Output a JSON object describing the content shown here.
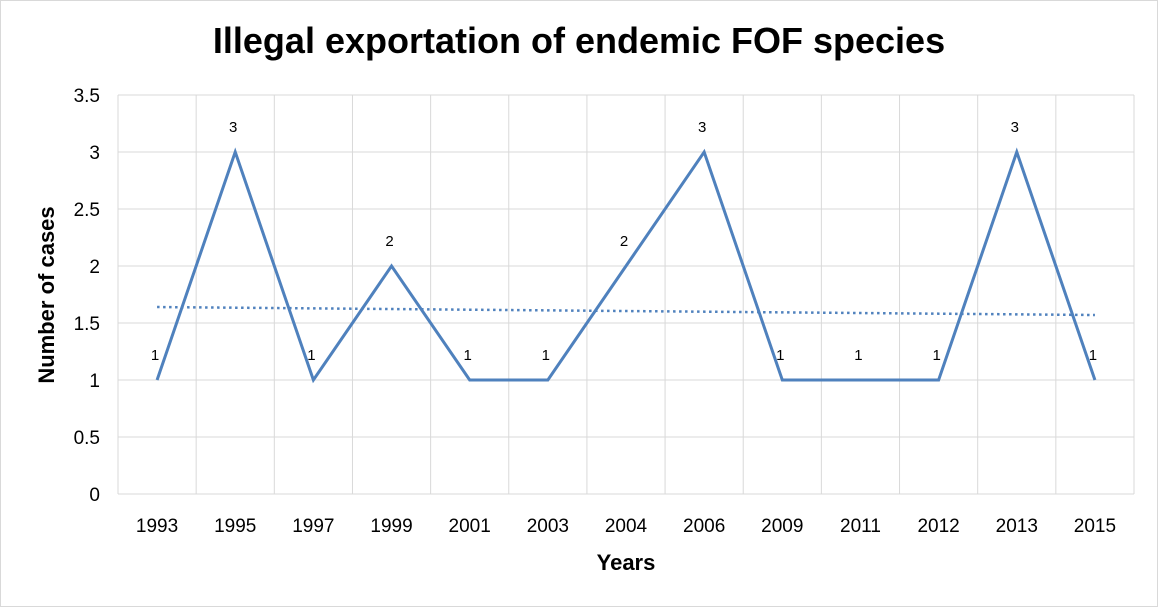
{
  "chart_data": {
    "type": "line",
    "title": "Illegal exportation of endemic FOF species",
    "xlabel": "Years",
    "ylabel": "Number of cases",
    "categories": [
      "1993",
      "1995",
      "1997",
      "1999",
      "2001",
      "2003",
      "2004",
      "2006",
      "2009",
      "2011",
      "2012",
      "2013",
      "2015"
    ],
    "series": [
      {
        "values": [
          1,
          3,
          1,
          2,
          1,
          1,
          2,
          3,
          1,
          1,
          1,
          3,
          1
        ],
        "color": "#4f81bd"
      }
    ],
    "trendline": {
      "style": "dotted",
      "color": "#4f81bd",
      "start": 1.64,
      "end": 1.57
    },
    "ylim": [
      0,
      3.5
    ],
    "yticks": [
      "0",
      "0.5",
      "1",
      "1.5",
      "2",
      "2.5",
      "3",
      "3.5"
    ],
    "grid": true,
    "legend": "none"
  }
}
